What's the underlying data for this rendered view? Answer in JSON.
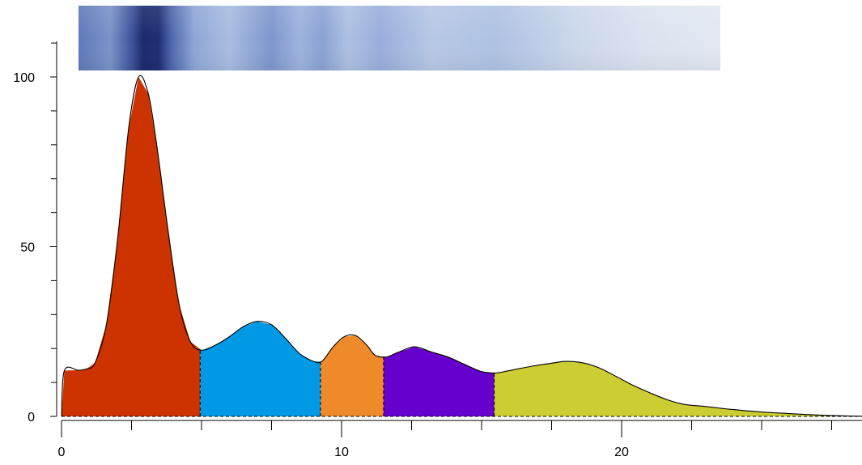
{
  "chart_data": {
    "type": "area",
    "title": "",
    "xlabel": "",
    "ylabel": "",
    "xlim": [
      0,
      28.6
    ],
    "ylim": [
      0,
      110
    ],
    "x_major_ticks": [
      0,
      10,
      20
    ],
    "x_tick_labels": [
      "0",
      "10",
      "20"
    ],
    "y_major_ticks": [
      0,
      50,
      100
    ],
    "y_tick_labels": [
      "0",
      "50",
      "100"
    ],
    "grid": false,
    "legend": "none",
    "baseline": 0,
    "band_image": {
      "description_colors": [
        "#1a2468",
        "#6f88c6",
        "#b9cbe6",
        "#dfe6f1"
      ],
      "band_centers_x": [
        2.8,
        6.9,
        10.4,
        12.5,
        18.0
      ]
    },
    "curve": {
      "x": [
        0.0,
        0.1,
        0.6,
        0.9,
        1.2,
        1.6,
        2.0,
        2.4,
        2.75,
        3.1,
        3.4,
        3.8,
        4.2,
        4.6,
        5.0,
        5.5,
        6.0,
        6.5,
        7.0,
        7.5,
        8.0,
        8.5,
        9.0,
        9.3,
        9.7,
        10.1,
        10.5,
        10.9,
        11.2,
        11.6,
        12.0,
        12.6,
        13.2,
        13.8,
        14.4,
        15.0,
        15.5,
        16.0,
        16.8,
        17.6,
        18.0,
        18.6,
        19.2,
        19.8,
        20.4,
        21.0,
        21.6,
        22.2,
        23.0,
        24.0,
        25.0,
        26.0,
        27.0,
        28.0,
        28.6
      ],
      "y": [
        0,
        13.5,
        13.6,
        14.0,
        15.8,
        27,
        52,
        85,
        100,
        95,
        80,
        55,
        33,
        22,
        19.5,
        21,
        23.5,
        26.5,
        28,
        27,
        23,
        18.5,
        16.2,
        16.2,
        20.5,
        23.5,
        23.8,
        21,
        18,
        17.5,
        18.8,
        20.5,
        19,
        17.5,
        15.3,
        13.2,
        12.8,
        13.5,
        14.8,
        15.8,
        16.2,
        15.8,
        14.3,
        11.8,
        9.2,
        7,
        5,
        3.6,
        2.9,
        2.0,
        1.3,
        0.8,
        0.4,
        0.15,
        0.05
      ]
    },
    "series": [
      {
        "name": "",
        "range": [
          0.0,
          4.95
        ],
        "color": "#cc3300"
      },
      {
        "name": "",
        "range": [
          4.95,
          9.25
        ],
        "color": "#0099e6"
      },
      {
        "name": "",
        "range": [
          9.25,
          11.5
        ],
        "color": "#ee8a2a"
      },
      {
        "name": "",
        "range": [
          11.5,
          15.45
        ],
        "color": "#6600cc"
      },
      {
        "name": "",
        "range": [
          15.45,
          28.6
        ],
        "color": "#cccc33"
      }
    ]
  }
}
